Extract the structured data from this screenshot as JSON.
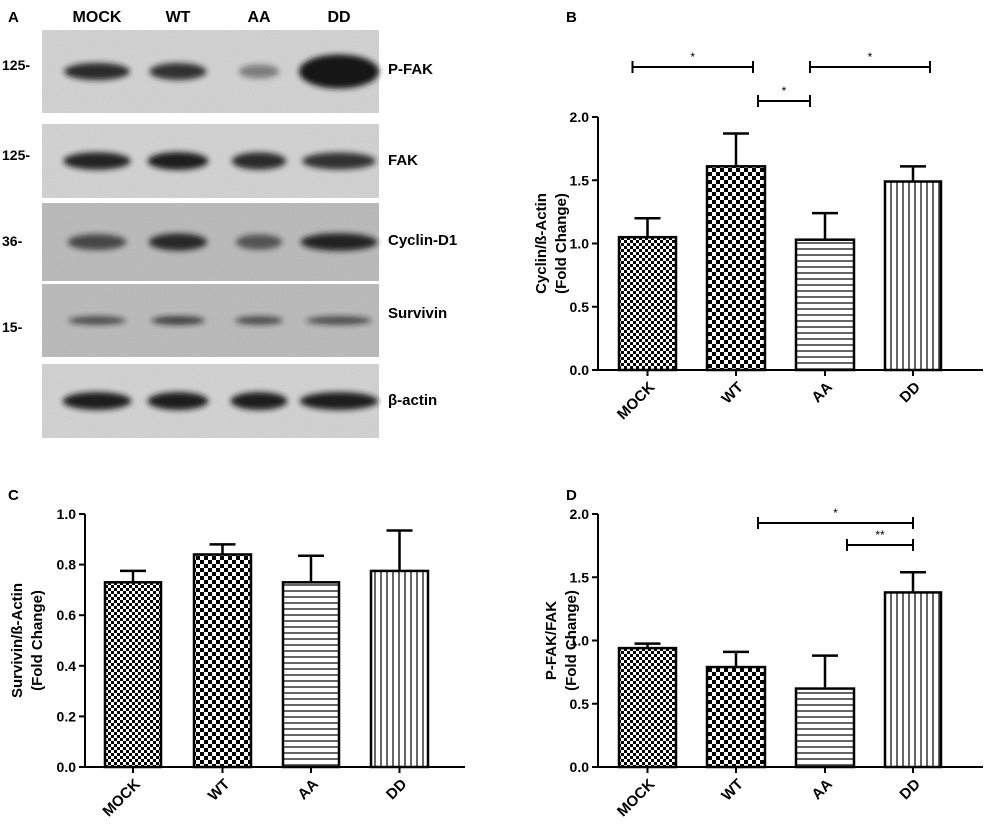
{
  "colors": {
    "ink": "#000000",
    "background": "#ffffff",
    "blot_band": "#161616"
  },
  "blot": {
    "panel_letter": "A",
    "lanes": [
      "MOCK",
      "WT",
      "AA",
      "DD"
    ],
    "rows": [
      {
        "label": "P-FAK",
        "mw": "125-",
        "band_intensity": [
          0.85,
          0.8,
          0.25,
          1.0
        ]
      },
      {
        "label": "FAK",
        "mw": "125-",
        "band_intensity": [
          0.9,
          0.95,
          0.85,
          0.8
        ]
      },
      {
        "label": "Cyclin-D1",
        "mw": "36-",
        "band_intensity": [
          0.6,
          0.85,
          0.5,
          0.9
        ]
      },
      {
        "label": "Survivin",
        "mw": "15-",
        "band_intensity": [
          0.55,
          0.65,
          0.55,
          0.55
        ]
      },
      {
        "label": "β-actin",
        "mw": "",
        "band_intensity": [
          0.95,
          0.95,
          0.95,
          0.95
        ]
      }
    ]
  },
  "chart_data": [
    {
      "panel": "B",
      "type": "bar",
      "categories": [
        "MOCK",
        "WT",
        "AA",
        "DD"
      ],
      "values": [
        1.05,
        1.61,
        1.03,
        1.49
      ],
      "errors": [
        0.15,
        0.26,
        0.21,
        0.12
      ],
      "patterns": [
        "checker-fine",
        "checker",
        "horizontal",
        "vertical"
      ],
      "ylabel": [
        "Cyclin/ß-Actin",
        "(Fold Change)"
      ],
      "ylim": [
        0,
        2.0
      ],
      "yticks": [
        "0.0",
        "0.5",
        "1.0",
        "1.5",
        "2.0"
      ],
      "significance": [
        {
          "from": 0,
          "to": 1,
          "label": "*"
        },
        {
          "from": 2,
          "to": 3,
          "label": "*"
        },
        {
          "from": 1,
          "to": 2,
          "label": "*"
        }
      ]
    },
    {
      "panel": "C",
      "type": "bar",
      "categories": [
        "MOCK",
        "WT",
        "AA",
        "DD"
      ],
      "values": [
        0.73,
        0.84,
        0.73,
        0.775
      ],
      "errors": [
        0.045,
        0.04,
        0.105,
        0.16
      ],
      "patterns": [
        "checker-fine",
        "checker",
        "horizontal",
        "vertical"
      ],
      "ylabel": [
        "Survivin/ß-Actin",
        "(Fold Change)"
      ],
      "ylim": [
        0,
        1.0
      ],
      "yticks": [
        "0.0",
        "0.2",
        "0.4",
        "0.6",
        "0.8",
        "1.0"
      ],
      "significance": []
    },
    {
      "panel": "D",
      "type": "bar",
      "categories": [
        "MOCK",
        "WT",
        "AA",
        "DD"
      ],
      "values": [
        0.94,
        0.79,
        0.62,
        1.38
      ],
      "errors": [
        0.035,
        0.12,
        0.26,
        0.16
      ],
      "patterns": [
        "checker-fine",
        "checker",
        "horizontal",
        "vertical"
      ],
      "ylabel": [
        "P-FAK/FAK",
        "(Fold Change)"
      ],
      "ylim": [
        0,
        2.0
      ],
      "yticks": [
        "0.0",
        "0.5",
        "1.0",
        "1.5",
        "2.0"
      ],
      "significance": [
        {
          "from": 1,
          "to": 3,
          "label": "*"
        },
        {
          "from": 2,
          "to": 3,
          "label": "**"
        }
      ]
    }
  ]
}
